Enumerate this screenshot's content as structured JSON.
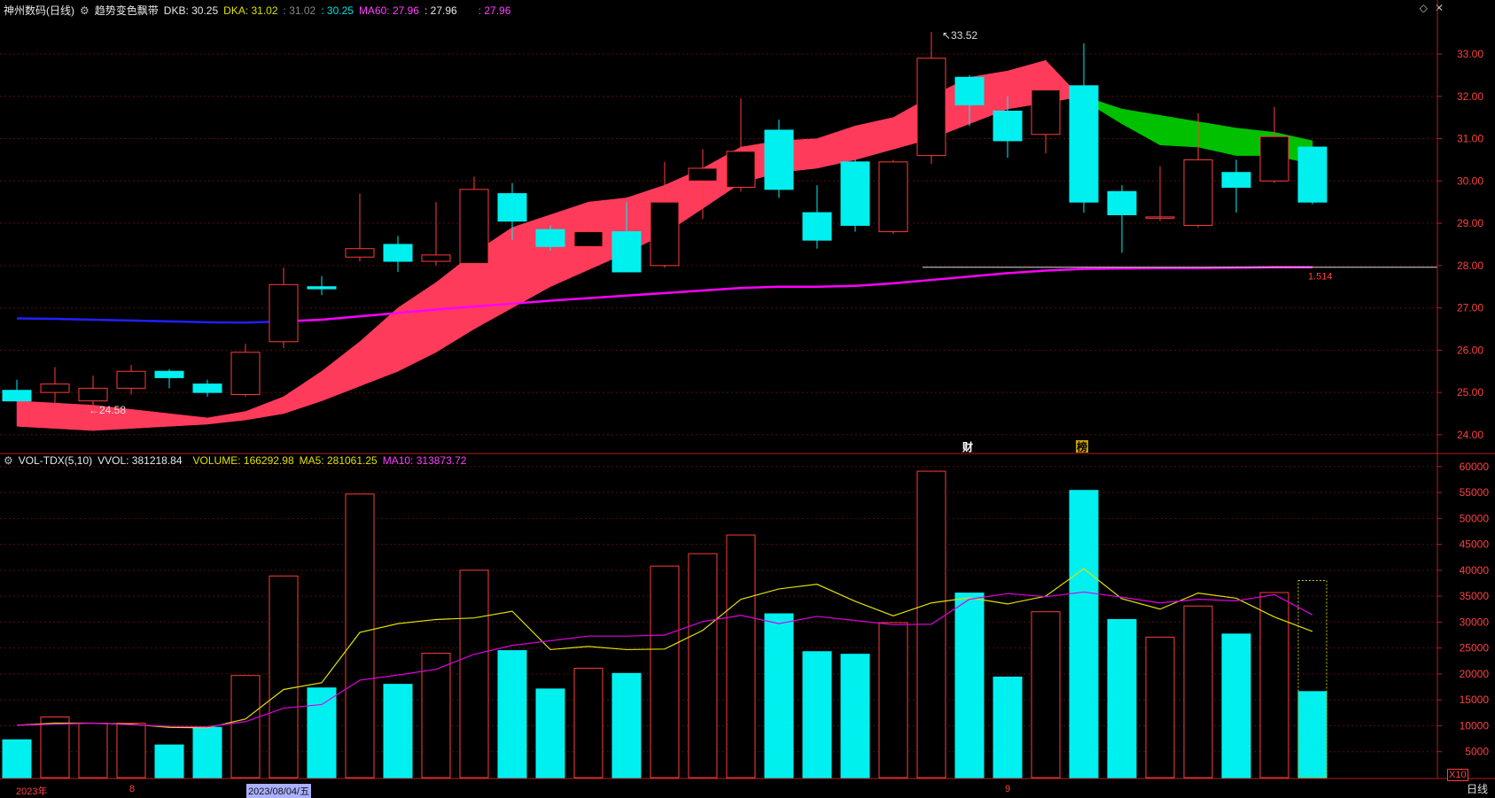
{
  "header": {
    "stock": "神州数码(日线)",
    "indicator": "趋势变色飘带",
    "dkb_label": "DKB: 30.25",
    "dka_label": "DKA: 31.02",
    "v1": ": 31.02",
    "v2": ": 30.25",
    "ma60_label": "MA60: 27.96",
    "v3": ": 27.96",
    "v4": ": 27.96"
  },
  "vol_header": {
    "name": "VOL-TDX(5,10)",
    "vvol": "VVOL: 381218.84",
    "volume": "VOLUME: 166292.98",
    "ma5": "MA5: 281061.25",
    "ma10": "MA10: 313873.72"
  },
  "x_labels": {
    "year": "2023年",
    "m8": "8",
    "date": "2023/08/04/五",
    "m9": "9"
  },
  "period_label": "日线",
  "multiplier": "X10",
  "colors": {
    "up": "#ff3b3b",
    "down": "#00f0f0",
    "ribbon_up": "#ff3b5c",
    "ribbon_down": "#00c000",
    "ma60_early": "#2020ff",
    "ma60_late": "#ff00ff",
    "vol_ma5": "#e0e000",
    "vol_ma10": "#e000e0"
  },
  "chart_data": [
    {
      "type": "candlestick",
      "title": "神州数码(日线)",
      "y_ticks": [
        24,
        25,
        26,
        27,
        28,
        29,
        30,
        31,
        32,
        33
      ],
      "y_tick_labels": [
        "24.00",
        "25.00",
        "26.00",
        "27.00",
        "28.00",
        "29.00",
        "30.00",
        "31.00",
        "32.00",
        "33.00"
      ],
      "ylim": [
        23.6,
        33.9
      ],
      "candles": [
        {
          "o": 25.05,
          "h": 25.3,
          "l": 24.9,
          "c": 24.8
        },
        {
          "o": 25.0,
          "h": 25.6,
          "l": 24.75,
          "c": 25.2
        },
        {
          "o": 24.8,
          "h": 25.4,
          "l": 24.58,
          "c": 25.1
        },
        {
          "o": 25.1,
          "h": 25.65,
          "l": 24.95,
          "c": 25.5
        },
        {
          "o": 25.5,
          "h": 25.55,
          "l": 25.1,
          "c": 25.35
        },
        {
          "o": 25.2,
          "h": 25.3,
          "l": 24.9,
          "c": 25.0
        },
        {
          "o": 24.95,
          "h": 26.15,
          "l": 24.9,
          "c": 25.95
        },
        {
          "o": 26.2,
          "h": 27.95,
          "l": 26.05,
          "c": 27.55
        },
        {
          "o": 27.5,
          "h": 27.75,
          "l": 27.3,
          "c": 27.45
        },
        {
          "o": 28.2,
          "h": 29.7,
          "l": 28.1,
          "c": 28.4
        },
        {
          "o": 28.5,
          "h": 28.7,
          "l": 27.85,
          "c": 28.1
        },
        {
          "o": 28.1,
          "h": 29.5,
          "l": 28.0,
          "c": 28.25
        },
        {
          "o": 28.05,
          "h": 30.1,
          "l": 28.0,
          "c": 29.8
        },
        {
          "o": 29.7,
          "h": 29.95,
          "l": 28.6,
          "c": 29.05
        },
        {
          "o": 28.85,
          "h": 28.95,
          "l": 28.35,
          "c": 28.45
        },
        {
          "o": 28.45,
          "h": 29.0,
          "l": 27.95,
          "c": 28.8
        },
        {
          "o": 28.8,
          "h": 29.5,
          "l": 27.85,
          "c": 27.85
        },
        {
          "o": 28.0,
          "h": 30.45,
          "l": 27.95,
          "c": 29.5
        },
        {
          "o": 30.0,
          "h": 30.75,
          "l": 29.1,
          "c": 30.3
        },
        {
          "o": 29.85,
          "h": 31.95,
          "l": 29.75,
          "c": 30.7
        },
        {
          "o": 31.2,
          "h": 31.45,
          "l": 29.6,
          "c": 29.8
        },
        {
          "o": 29.25,
          "h": 29.9,
          "l": 28.4,
          "c": 28.6
        },
        {
          "o": 30.45,
          "h": 30.5,
          "l": 28.8,
          "c": 28.95
        },
        {
          "o": 28.8,
          "h": 30.5,
          "l": 28.75,
          "c": 30.45
        },
        {
          "o": 30.6,
          "h": 33.52,
          "l": 30.4,
          "c": 32.9
        },
        {
          "o": 32.45,
          "h": 32.5,
          "l": 31.3,
          "c": 31.8
        },
        {
          "o": 31.65,
          "h": 32.0,
          "l": 30.55,
          "c": 30.95
        },
        {
          "o": 31.1,
          "h": 32.15,
          "l": 30.65,
          "c": 32.15
        },
        {
          "o": 32.25,
          "h": 33.25,
          "l": 29.25,
          "c": 29.5
        },
        {
          "o": 29.75,
          "h": 29.9,
          "l": 28.3,
          "c": 29.2
        },
        {
          "o": 29.15,
          "h": 30.35,
          "l": 29.05,
          "c": 29.15
        },
        {
          "o": 28.95,
          "h": 31.6,
          "l": 28.9,
          "c": 30.5
        },
        {
          "o": 30.2,
          "h": 30.5,
          "l": 29.25,
          "c": 29.85
        },
        {
          "o": 30.0,
          "h": 31.75,
          "l": 29.95,
          "c": 31.05
        },
        {
          "o": 30.8,
          "h": 30.8,
          "l": 29.45,
          "c": 29.5
        }
      ],
      "ribbon_a": [
        24.8,
        24.75,
        24.7,
        24.6,
        24.5,
        24.4,
        24.55,
        24.9,
        25.5,
        26.2,
        27.0,
        27.6,
        28.3,
        28.9,
        29.2,
        29.5,
        29.6,
        29.9,
        30.3,
        30.8,
        30.95,
        31.0,
        31.3,
        31.5,
        32.0,
        32.45,
        32.6,
        32.85,
        31.9,
        31.35,
        30.85,
        30.8,
        30.6,
        30.6,
        30.4
      ],
      "ribbon_b": [
        24.2,
        24.15,
        24.1,
        24.15,
        24.2,
        24.25,
        24.35,
        24.5,
        24.8,
        25.15,
        25.5,
        25.95,
        26.5,
        27.0,
        27.5,
        27.9,
        28.3,
        28.75,
        29.35,
        29.95,
        30.2,
        30.3,
        30.5,
        30.75,
        31.0,
        31.35,
        31.7,
        31.85,
        32.0,
        31.7,
        31.55,
        31.4,
        31.25,
        31.15,
        30.95
      ],
      "ma60": [
        26.75,
        26.74,
        26.72,
        26.7,
        26.68,
        26.66,
        26.65,
        26.68,
        26.72,
        26.8,
        26.88,
        26.96,
        27.03,
        27.1,
        27.17,
        27.23,
        27.29,
        27.35,
        27.41,
        27.47,
        27.5,
        27.5,
        27.52,
        27.58,
        27.66,
        27.74,
        27.82,
        27.88,
        27.92,
        27.93,
        27.94,
        27.94,
        27.95,
        27.96,
        27.96
      ],
      "annotations": [
        {
          "label": "33.52",
          "at": 24
        },
        {
          "label": "24.58",
          "at": 2
        },
        {
          "label": "1.514",
          "price": 27.96
        }
      ],
      "event_markers": [
        "财",
        "榜"
      ]
    },
    {
      "type": "bar",
      "title": "VOL-TDX(5,10)",
      "y_ticks": [
        5000,
        10000,
        15000,
        20000,
        25000,
        30000,
        35000,
        40000,
        45000,
        50000,
        55000,
        60000
      ],
      "y_tick_labels": [
        "5000",
        "10000",
        "15000",
        "20000",
        "25000",
        "30000",
        "35000",
        "40000",
        "45000",
        "50000",
        "55000",
        "60000"
      ],
      "ylim": [
        0,
        61500
      ],
      "volumes": [
        7300,
        11700,
        10500,
        10500,
        6300,
        9700,
        19700,
        38900,
        17300,
        54700,
        18000,
        24000,
        40000,
        24500,
        17100,
        21100,
        20100,
        40800,
        43200,
        46800,
        31600,
        24300,
        23800,
        29900,
        59100,
        35600,
        19400,
        32000,
        55400,
        30500,
        27100,
        33100,
        27700,
        35700,
        16600
      ],
      "ma5": [
        10100,
        10500,
        10500,
        10300,
        9700,
        9600,
        11300,
        17000,
        18300,
        28000,
        29700,
        30500,
        30800,
        32100,
        24700,
        25300,
        24700,
        24800,
        28400,
        34400,
        36400,
        37300,
        34000,
        31200,
        33700,
        34700,
        33500,
        35000,
        40300,
        34500,
        32500,
        35600,
        34600,
        31000,
        28200
      ],
      "ma10": [
        10100,
        10300,
        10500,
        10200,
        9900,
        9800,
        10800,
        13400,
        14100,
        18800,
        19800,
        20900,
        23800,
        25500,
        26400,
        27300,
        27300,
        27500,
        30100,
        31300,
        29700,
        31100,
        30300,
        29500,
        29600,
        34400,
        35500,
        34900,
        35800,
        34800,
        33700,
        34400,
        34100,
        35300,
        31400
      ]
    }
  ]
}
